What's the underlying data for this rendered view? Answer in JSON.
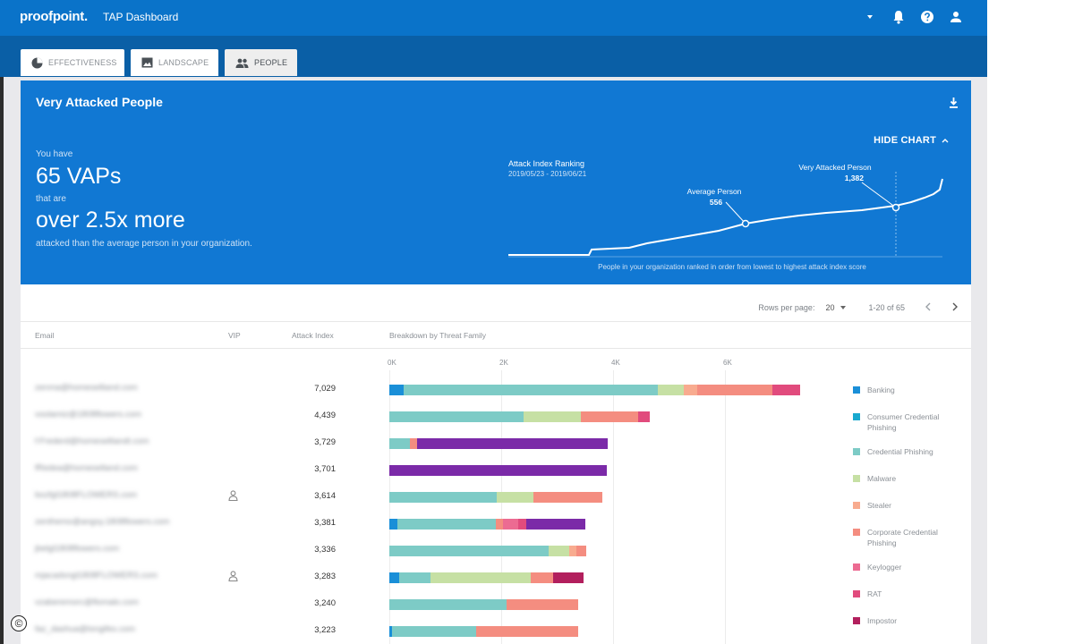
{
  "app": {
    "brand": "proofpoint.",
    "title": "TAP Dashboard"
  },
  "topbar": {
    "icons": [
      "caret-down-icon",
      "bell-icon",
      "help-icon",
      "user-icon"
    ]
  },
  "tabs": [
    {
      "label": "EFFECTIVENESS",
      "icon": "pie-chart-icon",
      "active": false
    },
    {
      "label": "LANDSCAPE",
      "icon": "image-icon",
      "active": false
    },
    {
      "label": "PEOPLE",
      "icon": "people-icon",
      "active": true
    }
  ],
  "banner": {
    "title": "Very Attacked People",
    "hide_chart": "HIDE CHART",
    "you_have": "You have",
    "vap_count": "65 VAPs",
    "that_are": "that are",
    "multiplier": "over 2.5x more",
    "tail": "attacked than the average person in your organization.",
    "chart": {
      "title": "Attack Index Ranking",
      "date_range": "2019/05/23 - 2019/06/21",
      "caption": "People in your organization ranked in order from lowest to highest attack index score",
      "avg_label": "Average Person",
      "avg_value": "556",
      "vap_label": "Very Attacked Person",
      "vap_value": "1,382"
    }
  },
  "pager": {
    "rows_per_page_label": "Rows per page:",
    "rows_per_page": "20",
    "range": "1-20 of 65"
  },
  "columns": {
    "email": "Email",
    "vip": "VIP",
    "attack_index": "Attack Index",
    "breakdown": "Breakdown by Threat Family"
  },
  "axis_ticks": [
    "0K",
    "2K",
    "4K",
    "6K"
  ],
  "legend": [
    {
      "name": "Banking",
      "color": "#1a8fd8"
    },
    {
      "name": "Consumer Credential Phishing",
      "color": "#19a9cf"
    },
    {
      "name": "Credential Phishing",
      "color": "#7dcbc6"
    },
    {
      "name": "Malware",
      "color": "#c6e0a4"
    },
    {
      "name": "Stealer",
      "color": "#f8ab8f"
    },
    {
      "name": "Corporate Credential Phishing",
      "color": "#f48d80"
    },
    {
      "name": "Keylogger",
      "color": "#ec6b92"
    },
    {
      "name": "RAT",
      "color": "#e14b7d"
    },
    {
      "name": "Impostor",
      "color": "#b21f5d"
    }
  ],
  "rows": [
    {
      "email": "zenma@homeselliand.com",
      "vip": false,
      "attack_index": "7,029",
      "segments": [
        {
          "v": 250,
          "c": "#1a8fd8"
        },
        {
          "v": 4550,
          "c": "#7dcbc6"
        },
        {
          "v": 470,
          "c": "#c6e0a4"
        },
        {
          "v": 230,
          "c": "#f8ab8f"
        },
        {
          "v": 1350,
          "c": "#f48d80"
        },
        {
          "v": 500,
          "c": "#e14b7d"
        }
      ]
    },
    {
      "email": "voolamiz@1808flowers.com",
      "vip": false,
      "attack_index": "4,439",
      "segments": [
        {
          "v": 2400,
          "c": "#7dcbc6"
        },
        {
          "v": 1020,
          "c": "#c6e0a4"
        },
        {
          "v": 1020,
          "c": "#f48d80"
        },
        {
          "v": 210,
          "c": "#e14b7d"
        }
      ]
    },
    {
      "email": "f:Frederd@homeselliandt.com",
      "vip": false,
      "attack_index": "3,729",
      "segments": [
        {
          "v": 360,
          "c": "#7dcbc6"
        },
        {
          "v": 130,
          "c": "#f48d80"
        },
        {
          "v": 3420,
          "c": "#7b2aa8"
        }
      ]
    },
    {
      "email": "fRedea@homeselland.com",
      "vip": false,
      "attack_index": "3,701",
      "segments": [
        {
          "v": 3880,
          "c": "#7b2aa8"
        }
      ]
    },
    {
      "email": "bozfgl1808FLOWERS.com",
      "vip": true,
      "attack_index": "3,614",
      "segments": [
        {
          "v": 1920,
          "c": "#7dcbc6"
        },
        {
          "v": 660,
          "c": "#c6e0a4"
        },
        {
          "v": 1220,
          "c": "#f48d80"
        }
      ]
    },
    {
      "email": "zenthemo@angsy.1808flowers.com",
      "vip": false,
      "attack_index": "3,381",
      "segments": [
        {
          "v": 150,
          "c": "#1a8fd8"
        },
        {
          "v": 1750,
          "c": "#7dcbc6"
        },
        {
          "v": 130,
          "c": "#f48d80"
        },
        {
          "v": 270,
          "c": "#ec6b92"
        },
        {
          "v": 140,
          "c": "#e14b7d"
        },
        {
          "v": 1060,
          "c": "#7b2aa8"
        }
      ]
    },
    {
      "email": "jbelgl1808flowers.com",
      "vip": false,
      "attack_index": "3,336",
      "segments": [
        {
          "v": 2850,
          "c": "#7dcbc6"
        },
        {
          "v": 370,
          "c": "#c6e0a4"
        },
        {
          "v": 130,
          "c": "#f8ab8f"
        },
        {
          "v": 170,
          "c": "#f48d80"
        }
      ]
    },
    {
      "email": "mjacadsngl1808FLOWERS.com",
      "vip": true,
      "attack_index": "3,283",
      "segments": [
        {
          "v": 170,
          "c": "#1a8fd8"
        },
        {
          "v": 570,
          "c": "#7dcbc6"
        },
        {
          "v": 1790,
          "c": "#c6e0a4"
        },
        {
          "v": 400,
          "c": "#f48d80"
        },
        {
          "v": 550,
          "c": "#b21f5d"
        }
      ]
    },
    {
      "email": "vzaberemorc@flomalo.com",
      "vip": false,
      "attack_index": "3,240",
      "segments": [
        {
          "v": 2100,
          "c": "#7dcbc6"
        },
        {
          "v": 1280,
          "c": "#f48d80"
        }
      ]
    },
    {
      "email": "faz_dashua@longifex.com",
      "vip": false,
      "attack_index": "3,223",
      "segments": [
        {
          "v": 50,
          "c": "#1a8fd8"
        },
        {
          "v": 1500,
          "c": "#7dcbc6"
        },
        {
          "v": 1820,
          "c": "#f48d80"
        }
      ]
    }
  ],
  "copyright_symbol": "©"
}
